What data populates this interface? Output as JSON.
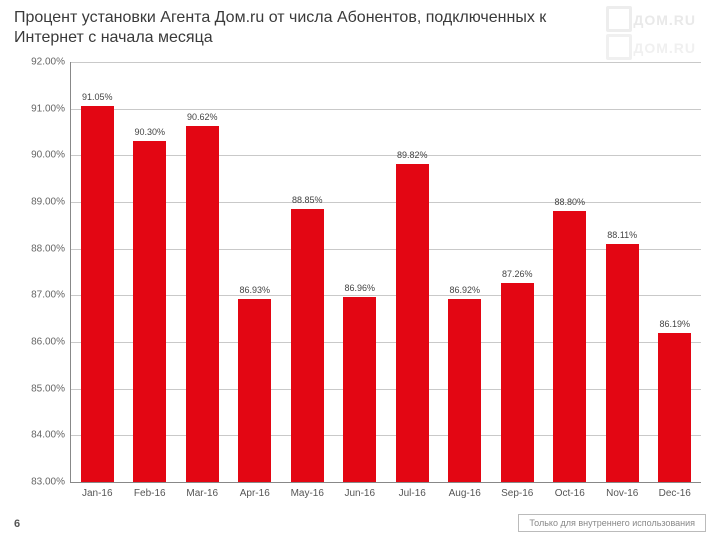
{
  "title": {
    "text": "Процент установки Агента Дом.ru от числа Абонентов, подключенных к Интернет с начала месяца",
    "fontsize": 16,
    "color": "#3a3a3a"
  },
  "watermark": {
    "text": "ДОМ.RU",
    "color": "#e9e9e9"
  },
  "chart": {
    "type": "bar",
    "ylim": [
      83.0,
      92.0
    ],
    "ytick_step": 1.0,
    "ytick_format_suffix": "%",
    "ytick_decimals": 2,
    "grid_color": "#c9c9c9",
    "axis_color": "#888888",
    "background_color": "#ffffff",
    "bar_color": "#e30613",
    "bar_width_ratio": 0.62,
    "label_fontsize": 9,
    "label_color": "#444444",
    "tick_fontsize": 10,
    "tick_color": "#666666",
    "categories": [
      "Jan-16",
      "Feb-16",
      "Mar-16",
      "Apr-16",
      "May-16",
      "Jun-16",
      "Jul-16",
      "Aug-16",
      "Sep-16",
      "Oct-16",
      "Nov-16",
      "Dec-16"
    ],
    "values": [
      91.05,
      90.3,
      90.62,
      86.93,
      88.85,
      86.96,
      89.82,
      86.92,
      87.26,
      88.8,
      88.11,
      86.19
    ],
    "value_labels": [
      "91.05%",
      "90.30%",
      "90.62%",
      "86.93%",
      "88.85%",
      "86.96%",
      "89.82%",
      "86.92%",
      "87.26%",
      "88.80%",
      "88.11%",
      "86.19%"
    ]
  },
  "page_number": "6",
  "footer_note": "Только для внутреннего использования"
}
